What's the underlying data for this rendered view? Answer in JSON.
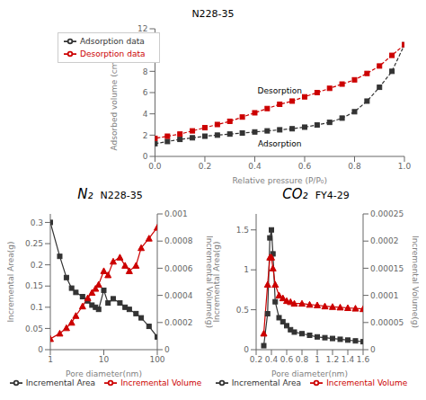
{
  "chart_data": [
    {
      "type": "line",
      "title": "N228-35",
      "xlabel": "Relative pressure (P/P₀)",
      "ylabel": "Adsorbed volume (cm³ / g⁻¹)",
      "xlim": [
        0,
        1.0
      ],
      "xticks": [
        {
          "value": 0,
          "label": "0.0"
        },
        0.2,
        0.4,
        0.6,
        0.8,
        {
          "value": 1.0,
          "label": "1.0"
        }
      ],
      "ylim": [
        0,
        12
      ],
      "yticks": [
        0,
        2,
        4,
        6,
        8,
        10,
        12
      ],
      "legend": "upper left",
      "annotations": [
        "Desorption",
        "Adsorption"
      ],
      "series": [
        {
          "name": "Adsorption data",
          "color": "#333333",
          "marker": "square",
          "line_style": "dashed",
          "x": [
            0.0,
            0.05,
            0.1,
            0.15,
            0.2,
            0.25,
            0.3,
            0.35,
            0.4,
            0.45,
            0.5,
            0.55,
            0.6,
            0.65,
            0.7,
            0.75,
            0.8,
            0.85,
            0.9,
            0.95,
            1.0
          ],
          "values": [
            1.2,
            1.4,
            1.6,
            1.75,
            1.9,
            2.0,
            2.1,
            2.2,
            2.3,
            2.4,
            2.5,
            2.6,
            2.75,
            2.95,
            3.2,
            3.6,
            4.2,
            5.2,
            6.5,
            8.0,
            10.5
          ]
        },
        {
          "name": "Desorption data",
          "color": "#cc0000",
          "marker": "square",
          "line_style": "dashed",
          "x": [
            1.0,
            0.95,
            0.9,
            0.85,
            0.8,
            0.75,
            0.7,
            0.65,
            0.6,
            0.55,
            0.5,
            0.45,
            0.4,
            0.35,
            0.3,
            0.25,
            0.2,
            0.15,
            0.1,
            0.05,
            0.0
          ],
          "values": [
            10.5,
            9.5,
            8.5,
            7.8,
            7.2,
            6.8,
            6.4,
            6.0,
            5.6,
            5.2,
            4.9,
            4.5,
            4.1,
            3.7,
            3.3,
            3.0,
            2.7,
            2.4,
            2.1,
            1.9,
            1.7
          ]
        }
      ]
    },
    {
      "type": "line",
      "title": "N228-35",
      "subtitle": "N₂",
      "xlabel": "Pore diameter(nm)",
      "ylabel": "Incremental Area(g)",
      "y2label": "Incremental Volume(g)",
      "log": "x",
      "x": [
        1,
        1.5,
        2,
        2.5,
        3,
        4,
        5,
        6,
        7,
        8,
        10,
        12,
        15,
        20,
        25,
        30,
        40,
        50,
        70,
        100
      ],
      "xlim": [
        1,
        100
      ],
      "xticks": [
        1,
        10,
        100
      ],
      "ylim": [
        0,
        0.32
      ],
      "yticks": [
        0,
        0.05,
        0.1,
        0.15,
        0.2,
        0.25,
        0.3
      ],
      "y2lim": [
        0,
        0.001
      ],
      "y2ticks": [
        0,
        0.0002,
        0.0004,
        0.0006,
        0.0008,
        0.001
      ],
      "legend": "bottom",
      "series": [
        {
          "name": "Incremental Area",
          "color": "#333333",
          "marker": "square",
          "line_style": "solid",
          "values": [
            0.3,
            0.22,
            0.17,
            0.145,
            0.135,
            0.125,
            0.115,
            0.105,
            0.1,
            0.095,
            0.14,
            0.11,
            0.12,
            0.11,
            0.1,
            0.095,
            0.085,
            0.075,
            0.055,
            0.03
          ]
        },
        {
          "name": "Incremental Volume",
          "color": "#cc0000",
          "marker": "triangle",
          "line_style": "solid",
          "axis": "y2",
          "values": [
            8e-05,
            0.00012,
            0.00016,
            0.0002,
            0.00025,
            0.00032,
            0.00038,
            0.00042,
            0.00045,
            0.00048,
            0.00058,
            0.00055,
            0.00065,
            0.00068,
            0.00062,
            0.00058,
            0.00062,
            0.00075,
            0.00082,
            0.0009
          ]
        }
      ]
    },
    {
      "type": "line",
      "title": "FY4-29",
      "subtitle": "CO₂",
      "xlabel": "Pore diameter(nm)",
      "ylabel": "Incremental Area(g)",
      "y2label": "Incremental Volume(g)",
      "x": [
        0.3,
        0.35,
        0.38,
        0.4,
        0.42,
        0.45,
        0.5,
        0.55,
        0.6,
        0.65,
        0.7,
        0.8,
        0.9,
        1.0,
        1.1,
        1.2,
        1.3,
        1.4,
        1.5,
        1.6
      ],
      "xlim": [
        0.2,
        1.6
      ],
      "xticks": [
        0.2,
        0.4,
        0.6,
        0.8,
        1,
        1.2,
        1.4,
        1.6
      ],
      "ylim": [
        0,
        1.7
      ],
      "yticks": [
        0,
        0.5,
        1,
        1.5
      ],
      "y2lim": [
        0,
        0.00025
      ],
      "y2ticks": [
        0,
        5e-05,
        0.0001,
        0.00015,
        0.0002,
        0.00025
      ],
      "legend": "bottom",
      "series": [
        {
          "name": "Incremental Area",
          "color": "#333333",
          "marker": "square",
          "line_style": "solid",
          "values": [
            0.05,
            0.45,
            1.4,
            1.5,
            1.2,
            0.6,
            0.4,
            0.35,
            0.3,
            0.25,
            0.22,
            0.2,
            0.18,
            0.16,
            0.15,
            0.14,
            0.13,
            0.12,
            0.11,
            0.1
          ]
        },
        {
          "name": "Incremental Volume",
          "color": "#cc0000",
          "marker": "triangle",
          "line_style": "solid",
          "axis": "y2",
          "values": [
            3e-05,
            0.00012,
            0.00017,
            0.00017,
            0.00015,
            0.00012,
            0.0001,
            9.5e-05,
            9e-05,
            8.8e-05,
            8.5e-05,
            8.5e-05,
            8.3e-05,
            8.2e-05,
            8e-05,
            7.9e-05,
            7.8e-05,
            7.7e-05,
            7.6e-05,
            7.5e-05
          ]
        }
      ]
    }
  ]
}
